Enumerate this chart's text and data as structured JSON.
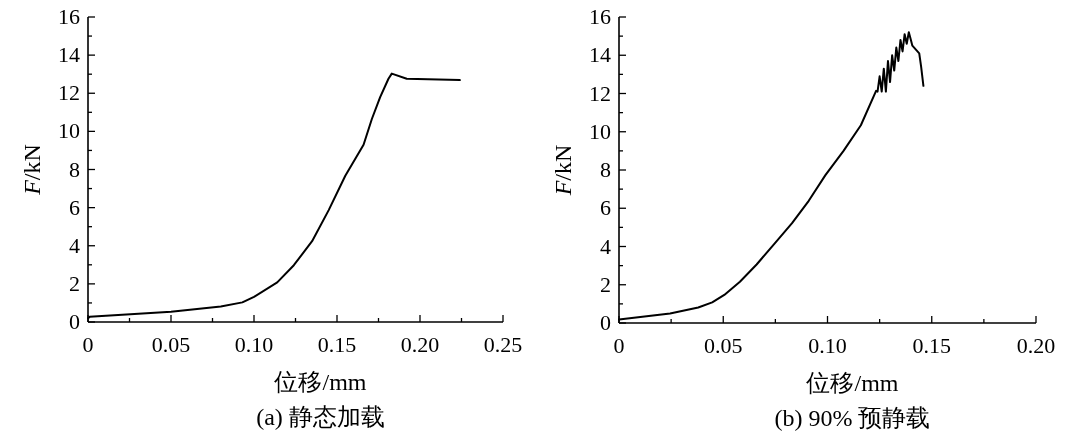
{
  "chart_data": [
    {
      "type": "line",
      "title": "(a) 静态加载",
      "xlabel": "位移/mm",
      "ylabel": "F/kN",
      "color": "#000000",
      "marker": "none",
      "line_style": "solid",
      "grid": false,
      "x": [
        0,
        0.001,
        0.05,
        0.08,
        0.093,
        0.1,
        0.114,
        0.124,
        0.135,
        0.145,
        0.155,
        0.166,
        0.171,
        0.176,
        0.181,
        0.183,
        0.192,
        0.224
      ],
      "values": [
        0.2,
        0.27,
        0.54,
        0.81,
        1.03,
        1.32,
        2.08,
        2.98,
        4.24,
        5.87,
        7.67,
        9.3,
        10.65,
        11.8,
        12.76,
        13.03,
        12.76,
        12.69
      ],
      "xlim": [
        0,
        0.25
      ],
      "ylim": [
        0,
        16
      ],
      "xticks": [
        0,
        {
          "value": 0.025,
          "label": null
        },
        0.05,
        {
          "value": 0.075,
          "label": null
        },
        {
          "value": 0.1,
          "label": "0.10"
        },
        {
          "value": 0.125,
          "label": null
        },
        0.15,
        {
          "value": 0.175,
          "label": null
        },
        {
          "value": 0.2,
          "label": "0.20"
        },
        {
          "value": 0.225,
          "label": null
        },
        0.25
      ],
      "yticks": [
        0,
        {
          "value": 1,
          "label": null
        },
        2,
        {
          "value": 3,
          "label": null
        },
        4,
        {
          "value": 5,
          "label": null
        },
        6,
        {
          "value": 7,
          "label": null
        },
        8,
        {
          "value": 9,
          "label": null
        },
        10,
        {
          "value": 11,
          "label": null
        },
        12,
        {
          "value": 13,
          "label": null
        },
        14,
        {
          "value": 15,
          "label": null
        },
        16
      ]
    },
    {
      "type": "line",
      "title": "(b) 90% 预静载",
      "xlabel": "位移/mm",
      "ylabel": "F/kN",
      "color": "#000000",
      "marker": "none",
      "line_style": "solid",
      "grid": false,
      "x": [
        0,
        0.0245,
        0.038,
        0.0447,
        0.0505,
        0.058,
        0.066,
        0.0745,
        0.083,
        0.091,
        0.099,
        0.1076,
        0.116,
        0.1233,
        0.124,
        0.125,
        0.126,
        0.127,
        0.128,
        0.129,
        0.13,
        0.131,
        0.132,
        0.133,
        0.134,
        0.135,
        0.136,
        0.137,
        0.138,
        0.139,
        0.14,
        0.1407,
        0.144,
        0.1449,
        0.146
      ],
      "values": [
        0.18,
        0.5,
        0.81,
        1.08,
        1.47,
        2.16,
        3.06,
        4.14,
        5.22,
        6.39,
        7.73,
        8.99,
        10.34,
        12.14,
        12.1,
        12.9,
        12.1,
        13.3,
        12.1,
        13.7,
        12.6,
        14.0,
        13.2,
        14.4,
        13.7,
        14.8,
        14.2,
        15.1,
        14.6,
        15.2,
        14.8,
        14.5,
        14.1,
        13.4,
        12.4
      ],
      "xlim": [
        0,
        0.2
      ],
      "ylim": [
        0,
        16
      ],
      "xticks": [
        0,
        {
          "value": 0.025,
          "label": null
        },
        0.05,
        {
          "value": 0.075,
          "label": null
        },
        {
          "value": 0.1,
          "label": "0.10"
        },
        {
          "value": 0.125,
          "label": null
        },
        0.15,
        {
          "value": 0.175,
          "label": null
        },
        {
          "value": 0.2,
          "label": "0.20"
        }
      ],
      "yticks": [
        0,
        {
          "value": 1,
          "label": null
        },
        2,
        {
          "value": 3,
          "label": null
        },
        4,
        {
          "value": 5,
          "label": null
        },
        6,
        {
          "value": 7,
          "label": null
        },
        8,
        {
          "value": 9,
          "label": null
        },
        10,
        {
          "value": 11,
          "label": null
        },
        12,
        {
          "value": 13,
          "label": null
        },
        14,
        {
          "value": 15,
          "label": null
        },
        16
      ]
    }
  ]
}
